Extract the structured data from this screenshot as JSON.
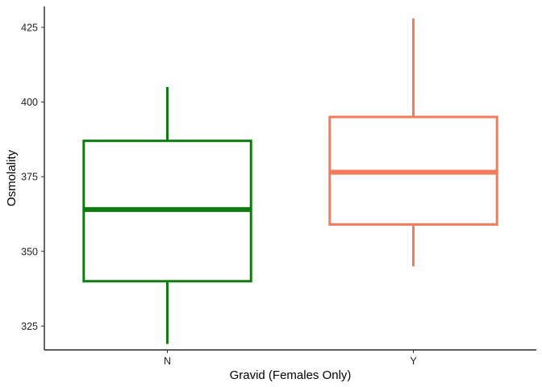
{
  "chart_data": {
    "type": "box",
    "title": "",
    "xlabel": "Gravid (Females Only)",
    "ylabel": "Osmolality",
    "categories": [
      "N",
      "Y"
    ],
    "ylim": [
      317,
      432
    ],
    "yticks": [
      325,
      350,
      375,
      400,
      425
    ],
    "grid": false,
    "legend": "none",
    "boxes": [
      {
        "category": "N",
        "whisker_low": 319,
        "q1": 340,
        "median": 364,
        "q3": 387,
        "whisker_high": 405,
        "color": "#0f7a0f"
      },
      {
        "category": "Y",
        "whisker_low": 345,
        "q1": 359,
        "median": 376.5,
        "q3": 395,
        "whisker_high": 428,
        "color": "#f47a5a"
      }
    ]
  }
}
